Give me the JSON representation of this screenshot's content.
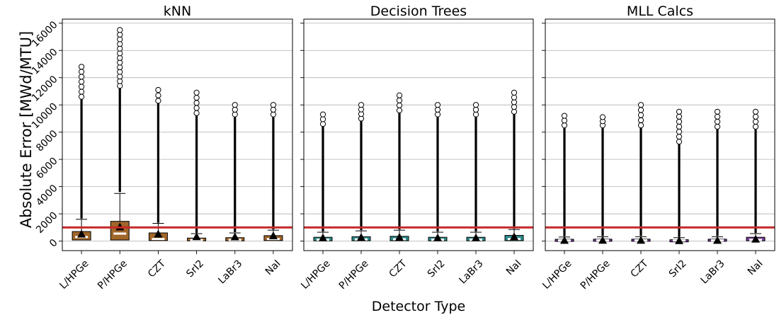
{
  "figure": {
    "ylabel": "Absolute Error [MWd/MTU]",
    "xlabel": "Detector Type"
  },
  "chart_data": [
    {
      "type": "box",
      "title": "kNN",
      "color": "#A0662A",
      "categories": [
        "L/HPGe",
        "P/HPGe",
        "CZT",
        "SrI2",
        "LaBr3",
        "NaI"
      ],
      "ylim": [
        -700,
        16300
      ],
      "yticks": [
        0,
        2000,
        4000,
        6000,
        8000,
        10000,
        12000,
        14000,
        16000
      ],
      "ytick_labels": [
        "0",
        "2000",
        "4000",
        "6000",
        "8000",
        "10000",
        "12000",
        "14000",
        "16000"
      ],
      "grid": "horizontal",
      "reference_line": {
        "value": 1000,
        "color": "#C62828"
      },
      "boxes": [
        {
          "q1": 80,
          "median": 300,
          "q3": 700,
          "mean": 520,
          "whisker_low": 0,
          "whisker_high": 1600,
          "outlier_min": 1650,
          "outlier_max": 12800,
          "sparse_from": 10600
        },
        {
          "q1": 80,
          "median": 550,
          "q3": 1450,
          "mean": 1050,
          "whisker_low": 0,
          "whisker_high": 3500,
          "outlier_min": 3600,
          "outlier_max": 15500,
          "sparse_from": 11400
        },
        {
          "q1": 40,
          "median": 150,
          "q3": 600,
          "mean": 520,
          "whisker_low": 0,
          "whisker_high": 1300,
          "outlier_min": 1350,
          "outlier_max": 11100,
          "sparse_from": 10300
        },
        {
          "q1": 20,
          "median": 80,
          "q3": 220,
          "mean": 330,
          "whisker_low": 0,
          "whisker_high": 550,
          "outlier_min": 600,
          "outlier_max": 10900,
          "sparse_from": 9400
        },
        {
          "q1": 20,
          "median": 90,
          "q3": 250,
          "mean": 320,
          "whisker_low": 0,
          "whisker_high": 600,
          "outlier_min": 650,
          "outlier_max": 10000,
          "sparse_from": 9300
        },
        {
          "q1": 40,
          "median": 150,
          "q3": 400,
          "mean": 400,
          "whisker_low": 0,
          "whisker_high": 800,
          "outlier_min": 850,
          "outlier_max": 10000,
          "sparse_from": 9300
        }
      ]
    },
    {
      "type": "box",
      "title": "Decision Trees",
      "color": "#2E8B8B",
      "categories": [
        "L/HPGe",
        "P/HPGe",
        "CZT",
        "SrI2",
        "LaBr3",
        "NaI"
      ],
      "ylim": [
        -700,
        16300
      ],
      "yticks": [
        0,
        2000,
        4000,
        6000,
        8000,
        10000,
        12000,
        14000,
        16000
      ],
      "grid": "horizontal",
      "reference_line": {
        "value": 1000,
        "color": "#C62828"
      },
      "boxes": [
        {
          "q1": 20,
          "median": 100,
          "q3": 280,
          "mean": 250,
          "whisker_low": 0,
          "whisker_high": 650,
          "outlier_min": 700,
          "outlier_max": 9300,
          "sparse_from": 8600
        },
        {
          "q1": 25,
          "median": 120,
          "q3": 320,
          "mean": 280,
          "whisker_low": 0,
          "whisker_high": 750,
          "outlier_min": 800,
          "outlier_max": 10000,
          "sparse_from": 9000
        },
        {
          "q1": 25,
          "median": 130,
          "q3": 350,
          "mean": 290,
          "whisker_low": 0,
          "whisker_high": 800,
          "outlier_min": 850,
          "outlier_max": 10700,
          "sparse_from": 9600
        },
        {
          "q1": 20,
          "median": 100,
          "q3": 280,
          "mean": 250,
          "whisker_low": 0,
          "whisker_high": 650,
          "outlier_min": 700,
          "outlier_max": 10000,
          "sparse_from": 9300
        },
        {
          "q1": 20,
          "median": 100,
          "q3": 280,
          "mean": 250,
          "whisker_low": 0,
          "whisker_high": 650,
          "outlier_min": 700,
          "outlier_max": 10000,
          "sparse_from": 9300
        },
        {
          "q1": 30,
          "median": 150,
          "q3": 420,
          "mean": 330,
          "whisker_low": 0,
          "whisker_high": 850,
          "outlier_min": 900,
          "outlier_max": 10900,
          "sparse_from": 9500
        }
      ]
    },
    {
      "type": "box",
      "title": "MLL Calcs",
      "color": "#7B3F98",
      "categories": [
        "L/HPGe",
        "P/HPGe",
        "CZT",
        "SrI2",
        "LaBr3",
        "NaI"
      ],
      "ylim": [
        -700,
        16300
      ],
      "yticks": [
        0,
        2000,
        4000,
        6000,
        8000,
        10000,
        12000,
        14000,
        16000
      ],
      "grid": "horizontal",
      "reference_line": {
        "value": 1000,
        "color": "#C62828"
      },
      "boxes": [
        {
          "q1": 10,
          "median": 50,
          "q3": 130,
          "mean": 60,
          "whisker_low": 0,
          "whisker_high": 300,
          "outlier_min": 350,
          "outlier_max": 9200,
          "sparse_from": 8500
        },
        {
          "q1": 10,
          "median": 55,
          "q3": 140,
          "mean": 70,
          "whisker_low": 0,
          "whisker_high": 320,
          "outlier_min": 370,
          "outlier_max": 9100,
          "sparse_from": 8500
        },
        {
          "q1": 10,
          "median": 55,
          "q3": 140,
          "mean": 70,
          "whisker_low": 0,
          "whisker_high": 320,
          "outlier_min": 370,
          "outlier_max": 10000,
          "sparse_from": 8500
        },
        {
          "q1": 10,
          "median": 40,
          "q3": 100,
          "mean": 40,
          "whisker_low": 0,
          "whisker_high": 250,
          "outlier_min": 300,
          "outlier_max": 9500,
          "sparse_from": 7300
        },
        {
          "q1": 10,
          "median": 55,
          "q3": 140,
          "mean": 60,
          "whisker_low": 0,
          "whisker_high": 320,
          "outlier_min": 370,
          "outlier_max": 9500,
          "sparse_from": 8400
        },
        {
          "q1": 20,
          "median": 90,
          "q3": 280,
          "mean": 150,
          "whisker_low": 0,
          "whisker_high": 550,
          "outlier_min": 600,
          "outlier_max": 9500,
          "sparse_from": 8400
        }
      ]
    }
  ]
}
